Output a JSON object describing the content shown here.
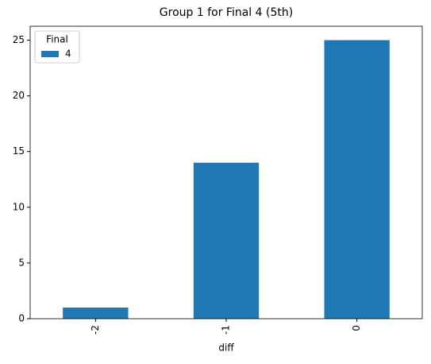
{
  "chart_data": {
    "type": "bar",
    "title": "Group 1 for Final 4 (5th)",
    "x_label": "diff",
    "categories": [
      "-2",
      "-1",
      "0"
    ],
    "series": [
      {
        "name": "4",
        "color": "#1f77b4",
        "values": [
          1,
          14,
          25
        ]
      }
    ],
    "legend_title": "Final",
    "legend": "upper left",
    "ylim": [
      0,
      26.25
    ],
    "yticks": [
      0,
      5,
      10,
      15,
      20,
      25
    ]
  }
}
